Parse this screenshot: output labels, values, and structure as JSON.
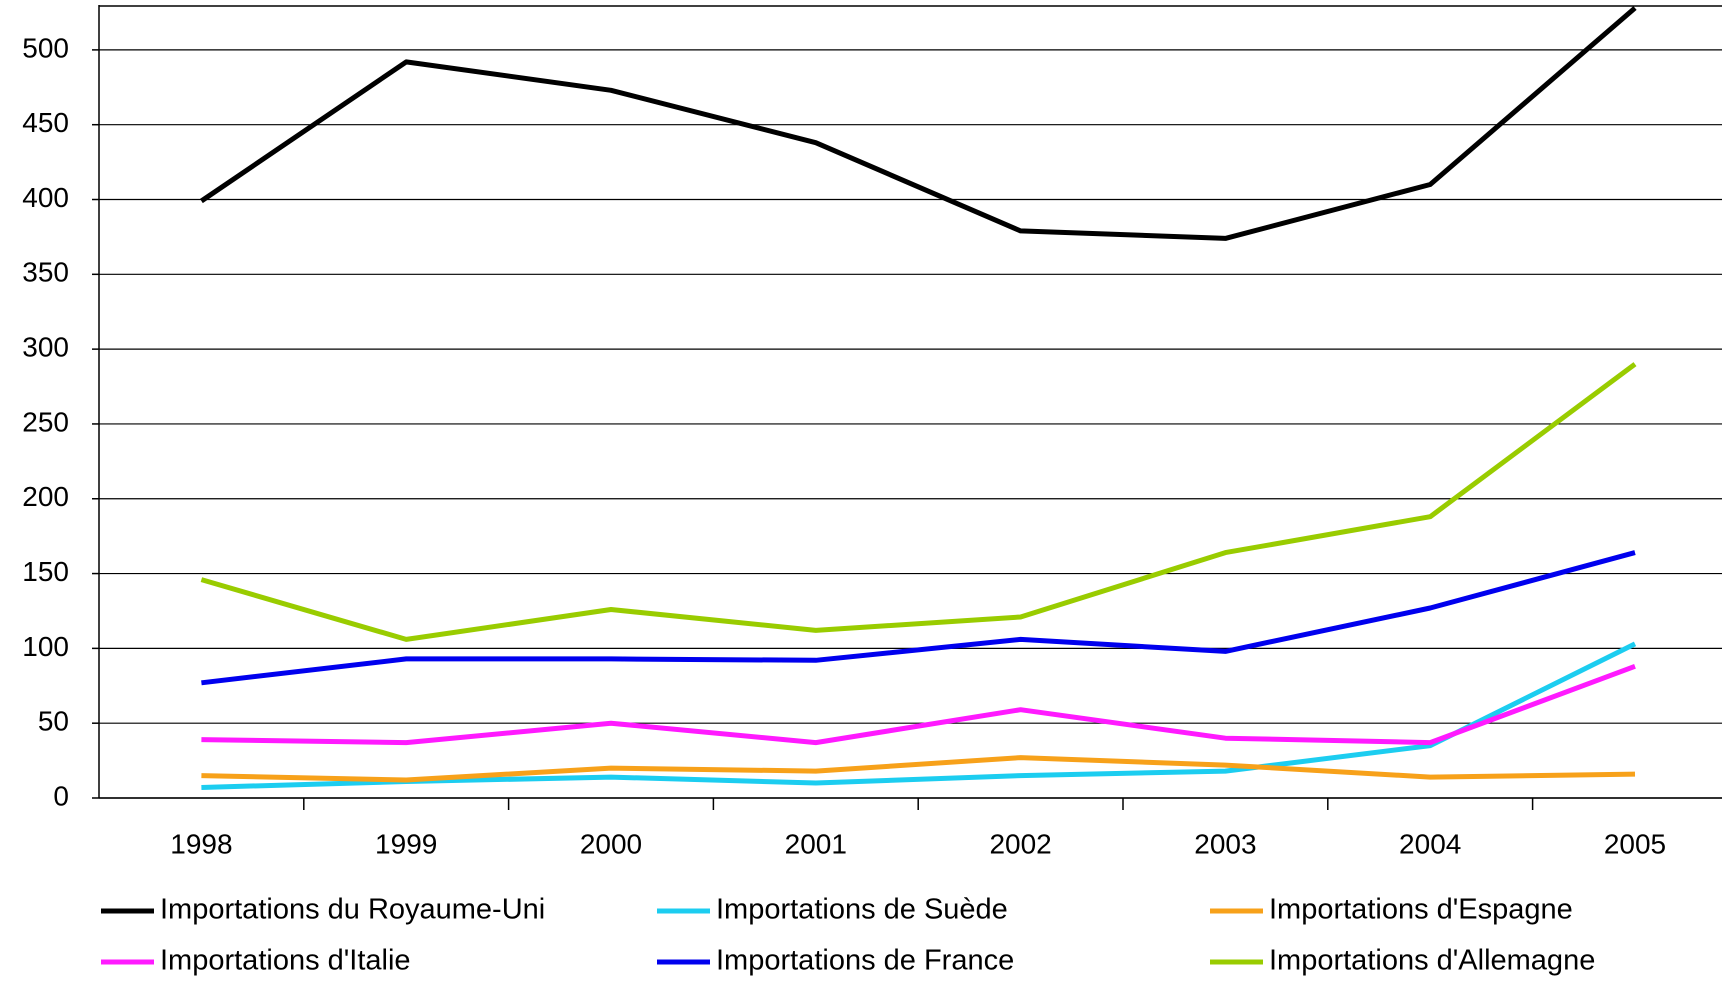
{
  "chart_data": {
    "type": "line",
    "categories": [
      "1998",
      "1999",
      "2000",
      "2001",
      "2002",
      "2003",
      "2004",
      "2005"
    ],
    "series": [
      {
        "name": "Importations du Royaume-Uni",
        "color": "#000000",
        "values": [
          399,
          492,
          473,
          438,
          379,
          374,
          410,
          528
        ]
      },
      {
        "name": "Importations de Suède",
        "color": "#1ccdf0",
        "values": [
          7,
          11,
          14,
          10,
          15,
          18,
          35,
          103
        ]
      },
      {
        "name": "Importations d'Espagne",
        "color": "#f7a11a",
        "values": [
          15,
          12,
          20,
          18,
          27,
          22,
          14,
          16
        ]
      },
      {
        "name": "Importations d'Italie",
        "color": "#ff1aff",
        "values": [
          39,
          37,
          50,
          37,
          59,
          40,
          37,
          88
        ]
      },
      {
        "name": "Importations de France",
        "color": "#0000ee",
        "values": [
          77,
          93,
          93,
          92,
          106,
          98,
          127,
          164
        ]
      },
      {
        "name": "Importations d'Allemagne",
        "color": "#99cc00",
        "values": [
          146,
          106,
          126,
          112,
          121,
          164,
          188,
          290
        ]
      }
    ],
    "ylim": [
      0,
      530
    ],
    "yticks": [
      0,
      50,
      100,
      150,
      200,
      250,
      300,
      350,
      400,
      450,
      500
    ],
    "grid": true,
    "legend": "bottom"
  }
}
